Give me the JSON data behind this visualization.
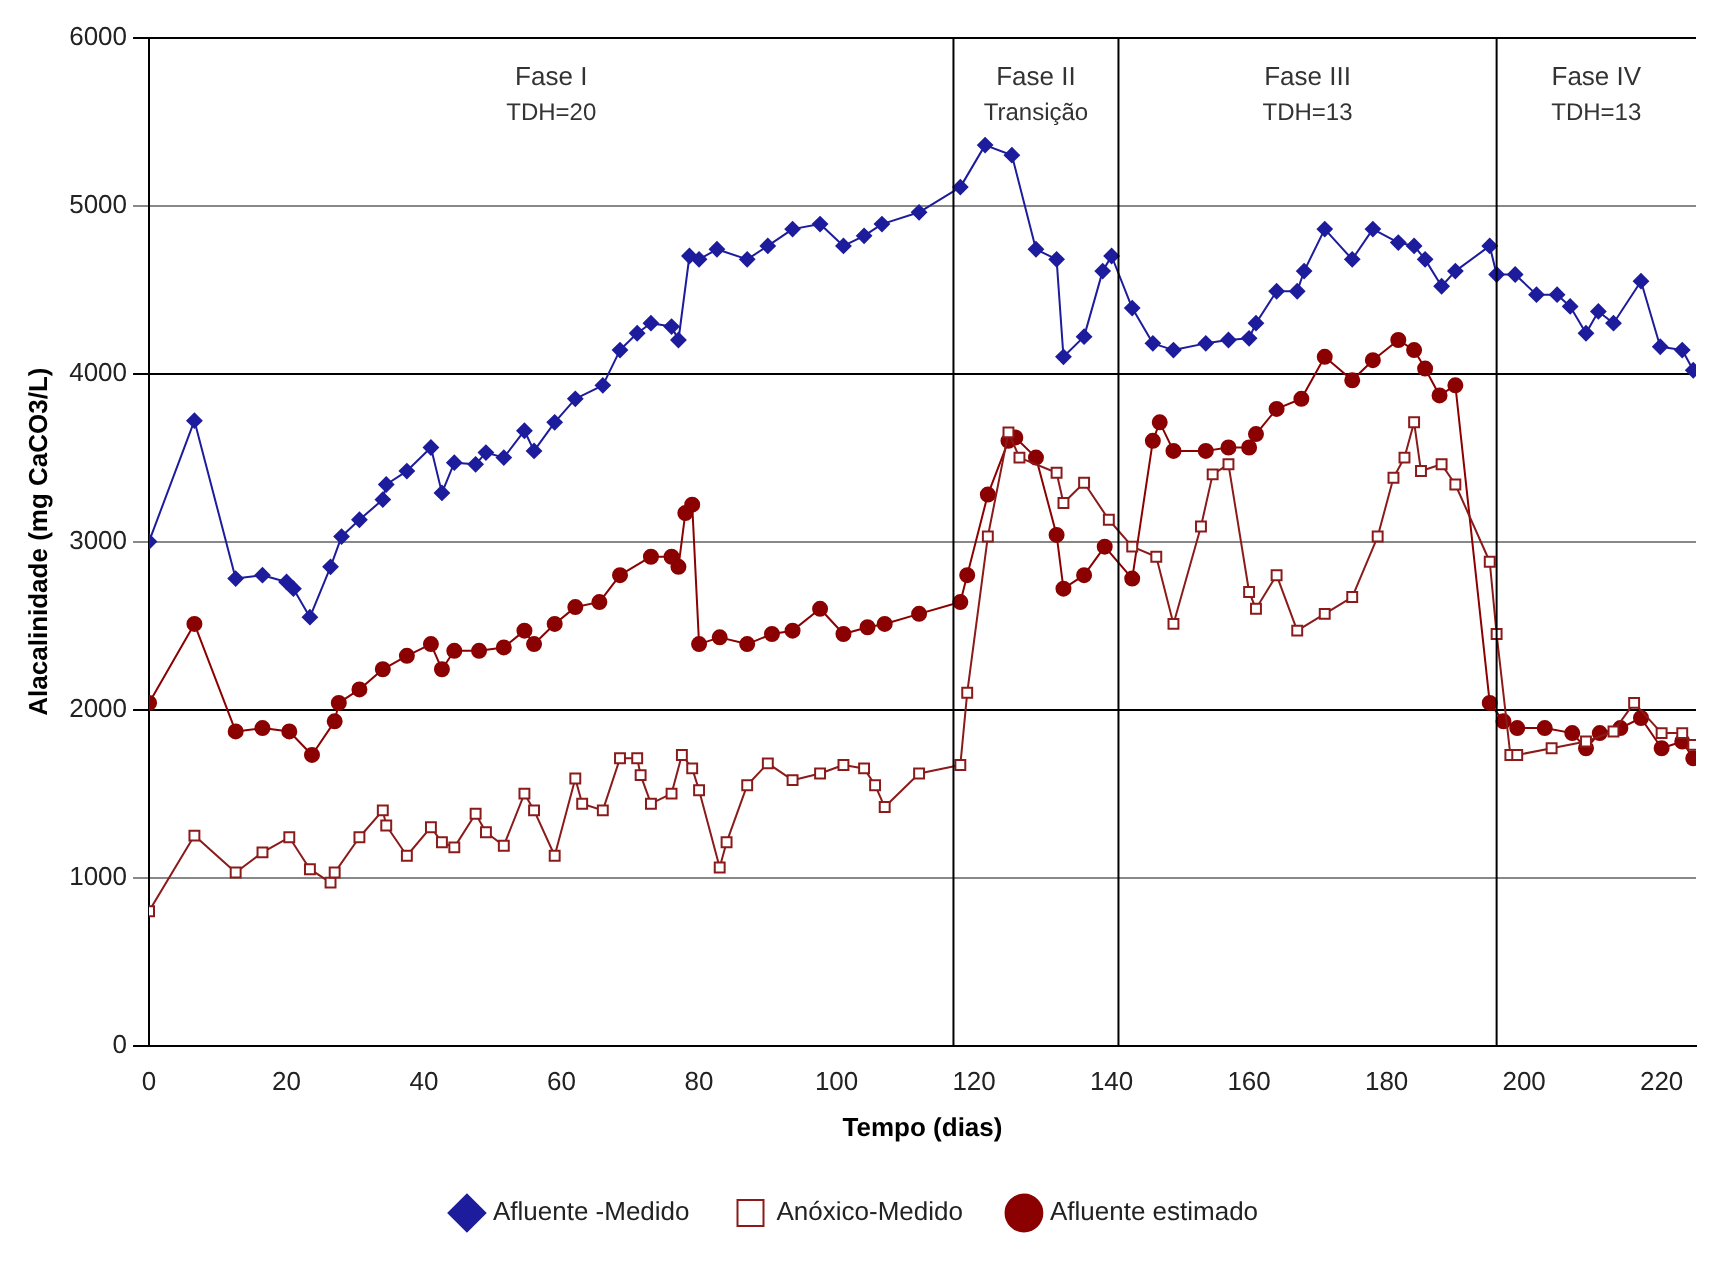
{
  "chart_data": {
    "type": "line",
    "xlabel": "Tempo (dias)",
    "ylabel": "Alacalinidade (mg CaCO3/L)",
    "xlim": [
      0,
      225
    ],
    "xticks": [
      0,
      20,
      40,
      60,
      80,
      100,
      120,
      140,
      160,
      180,
      200,
      220
    ],
    "ylim": [
      0,
      6000
    ],
    "yticks": [
      0,
      1000,
      2000,
      3000,
      4000,
      5000,
      6000
    ],
    "grid": "y",
    "legend": "bottom",
    "ref_lines": [
      {
        "axis": "x",
        "value": 117,
        "color": "#000000"
      },
      {
        "axis": "x",
        "value": 141,
        "color": "#000000"
      },
      {
        "axis": "x",
        "value": 196,
        "color": "#000000"
      }
    ],
    "annotations": [
      "Fase I",
      "TDH=20",
      "Fase II",
      "Transição",
      "Fase III",
      "TDH=13",
      "Fase IV",
      "TDH=13"
    ],
    "series": [
      {
        "name": "Afluente -Medido",
        "color": "#1c1c9c",
        "marker": "diamond",
        "x": [
          0,
          6.6,
          12.6,
          16.5,
          20,
          21,
          23.4,
          26.4,
          28,
          30.6,
          34,
          34.5,
          37.5,
          41,
          42.6,
          44.4,
          47.5,
          49,
          51.6,
          54.6,
          56,
          59,
          62,
          66,
          68.5,
          71,
          73,
          76,
          77,
          78.6,
          80,
          82.6,
          87,
          90,
          93.6,
          97.6,
          101,
          104,
          106.6,
          112,
          118,
          121.6,
          125.5,
          129,
          132,
          133,
          136,
          138.7,
          140,
          143,
          146,
          149,
          153.7,
          157,
          160,
          161,
          164,
          167,
          168,
          171,
          175,
          178,
          181.7,
          184,
          185.6,
          188,
          190,
          195,
          196,
          198.7,
          201.8,
          204.8,
          206.7,
          209,
          210.8,
          213,
          217,
          219.8,
          223,
          224.6
        ],
        "values": [
          3000,
          3720,
          2780,
          2800,
          2760,
          2720,
          2550,
          2850,
          3030,
          3130,
          3250,
          3340,
          3420,
          3560,
          3290,
          3470,
          3460,
          3530,
          3500,
          3660,
          3540,
          3710,
          3850,
          3930,
          4140,
          4240,
          4300,
          4280,
          4200,
          4700,
          4680,
          4740,
          4680,
          4760,
          4860,
          4890,
          4760,
          4820,
          4890,
          4960,
          5110,
          5360,
          5300,
          4740,
          4680,
          4100,
          4220,
          4610,
          4700,
          4390,
          4180,
          4140,
          4180,
          4200,
          4210,
          4300,
          4490,
          4490,
          4610,
          4860,
          4680,
          4860,
          4780,
          4760,
          4680,
          4520,
          4610,
          4760,
          4590,
          4590,
          4470,
          4470,
          4400,
          4240,
          4370,
          4300,
          4550,
          4160,
          4140,
          4020
        ]
      },
      {
        "name": "Anóxico-Medido",
        "color": "#8b1a1a",
        "marker": "square",
        "x": [
          0,
          6.6,
          12.6,
          16.5,
          20.4,
          23.4,
          26.4,
          27,
          30.6,
          34,
          34.5,
          37.5,
          41,
          42.6,
          44.4,
          47.5,
          49,
          51.6,
          54.6,
          56,
          59,
          62,
          63,
          66,
          68.5,
          71,
          71.5,
          73,
          76,
          77.5,
          79,
          80,
          83,
          84,
          87,
          90,
          93.6,
          97.6,
          101,
          104,
          105.6,
          107,
          112,
          118,
          119,
          122,
          125,
          126.6,
          132,
          133,
          136,
          139.6,
          143,
          146.5,
          149,
          153,
          154.7,
          157,
          160,
          161,
          164,
          167,
          171,
          175,
          178.7,
          181,
          182.6,
          184,
          185,
          188,
          190,
          195,
          196,
          198,
          199,
          204,
          209,
          213,
          216,
          220,
          223,
          224.6
        ],
        "values": [
          800,
          1250,
          1030,
          1150,
          1240,
          1050,
          970,
          1030,
          1240,
          1400,
          1310,
          1130,
          1300,
          1210,
          1180,
          1380,
          1270,
          1190,
          1500,
          1400,
          1130,
          1590,
          1440,
          1400,
          1710,
          1710,
          1610,
          1440,
          1500,
          1730,
          1650,
          1520,
          1060,
          1210,
          1550,
          1680,
          1580,
          1620,
          1670,
          1650,
          1550,
          1420,
          1620,
          1670,
          2100,
          3030,
          3650,
          3500,
          3410,
          3230,
          3350,
          3130,
          2970,
          2910,
          2510,
          3090,
          3400,
          3460,
          2700,
          2600,
          2800,
          2470,
          2570,
          2670,
          3030,
          3380,
          3500,
          3710,
          3420,
          3460,
          3340,
          2880,
          2450,
          1730,
          1730,
          1770,
          1810,
          1870,
          2040,
          1860,
          1860,
          1790
        ]
      },
      {
        "name": "Afluente estimado",
        "color": "#8b0000",
        "marker": "circle",
        "x": [
          0,
          6.6,
          12.6,
          16.5,
          20.4,
          23.7,
          27,
          27.6,
          30.6,
          34,
          37.5,
          41,
          42.6,
          44.4,
          48,
          51.6,
          54.6,
          56,
          59,
          62,
          65.5,
          68.5,
          73,
          76,
          77,
          78,
          79,
          80,
          83,
          87,
          90.6,
          93.6,
          97.6,
          101,
          104.5,
          107,
          112,
          118,
          119,
          122,
          125,
          126,
          129,
          132,
          133,
          136,
          139,
          143,
          146,
          147,
          149,
          153.7,
          157,
          160,
          161,
          164,
          167.6,
          171,
          175,
          178,
          181.7,
          184,
          185.6,
          187.7,
          190,
          195,
          197,
          199,
          203,
          207,
          209,
          211,
          214,
          217,
          220,
          223,
          224.6
        ],
        "values": [
          2040,
          2510,
          1870,
          1890,
          1870,
          1730,
          1930,
          2040,
          2120,
          2240,
          2320,
          2390,
          2240,
          2350,
          2350,
          2370,
          2470,
          2390,
          2510,
          2610,
          2640,
          2800,
          2910,
          2910,
          2850,
          3170,
          3220,
          2390,
          2430,
          2390,
          2450,
          2470,
          2600,
          2450,
          2490,
          2510,
          2570,
          2640,
          2800,
          3280,
          3600,
          3620,
          3500,
          3040,
          2720,
          2800,
          2970,
          2780,
          3600,
          3710,
          3540,
          3540,
          3560,
          3560,
          3640,
          3790,
          3850,
          4100,
          3960,
          4080,
          4200,
          4140,
          4030,
          3870,
          3930,
          2040,
          1930,
          1890,
          1890,
          1860,
          1770,
          1860,
          1890,
          1950,
          1770,
          1810,
          1710
        ]
      }
    ]
  }
}
